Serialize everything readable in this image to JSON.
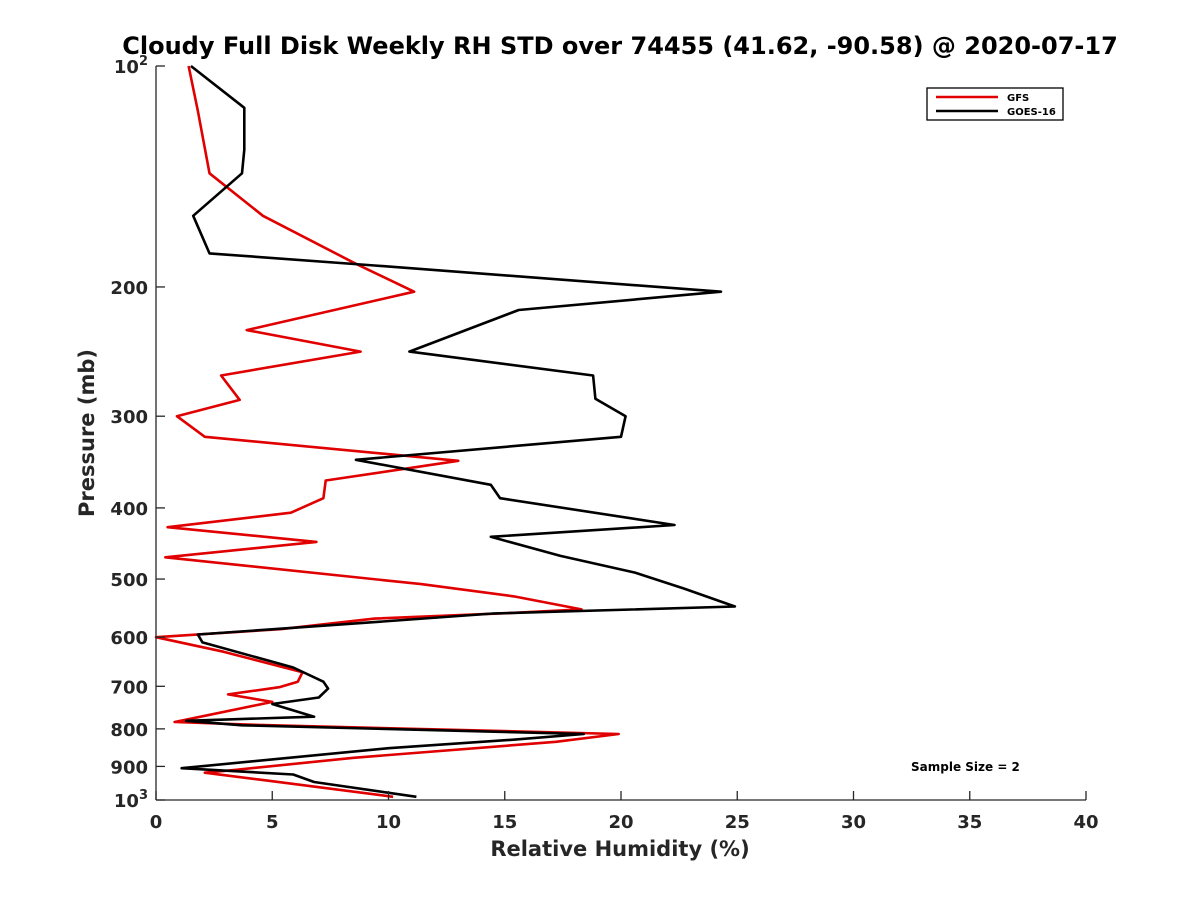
{
  "chart_data": {
    "type": "line",
    "title": "Cloudy Full Disk Weekly RH STD over 74455 (41.62, -90.58) @ 2020-07-17",
    "xlabel": "Relative Humidity (%)",
    "ylabel": "Pressure (mb)",
    "xlim": [
      0,
      40
    ],
    "ylim": [
      100,
      1000
    ],
    "yscale": "log",
    "y_reversed": true,
    "grid": false,
    "legend_position": "top-right",
    "annotation": "Sample Size = 2",
    "x_ticks": [
      "0",
      "5",
      "10",
      "15",
      "20",
      "25",
      "30",
      "35",
      "40"
    ],
    "y_ticks": [
      {
        "value": 100,
        "base": "10",
        "exp": "2"
      },
      {
        "value": 200,
        "label": "200"
      },
      {
        "value": 300,
        "label": "300"
      },
      {
        "value": 400,
        "label": "400"
      },
      {
        "value": 500,
        "label": "500"
      },
      {
        "value": 600,
        "label": "600"
      },
      {
        "value": 700,
        "label": "700"
      },
      {
        "value": 800,
        "label": "800"
      },
      {
        "value": 900,
        "label": "900"
      },
      {
        "value": 1000,
        "base": "10",
        "exp": "3"
      }
    ],
    "series": [
      {
        "name": "GFS",
        "color": "#e00000",
        "x": [
          1.4,
          1.8,
          2.3,
          4.6,
          8.6,
          11.1,
          3.9,
          8.8,
          2.8,
          3.6,
          0.9,
          2.1,
          13,
          7.3,
          7.2,
          5.8,
          0.5,
          6.9,
          0.4,
          11.4,
          15.4,
          18.3,
          15.3,
          9.4,
          5.4,
          0,
          2.9,
          6.3,
          6.1,
          5.3,
          3.1,
          5,
          1.5,
          0.8,
          4.4,
          19.9,
          17.2,
          8.5,
          3.4,
          2.1,
          4.7,
          10.2
        ],
        "y": [
          100,
          115,
          140,
          160,
          186,
          203,
          229,
          245,
          264,
          285,
          300,
          320,
          345,
          367,
          388,
          406,
          425,
          445,
          467,
          508,
          528,
          550,
          556,
          566,
          585,
          600,
          628,
          670,
          690,
          702,
          718,
          735,
          775,
          783,
          790,
          813,
          833,
          876,
          910,
          918,
          940,
          990
        ]
      },
      {
        "name": "GOES-16",
        "color": "#000000",
        "x": [
          1.5,
          3.8,
          3.8,
          3.7,
          1.6,
          2.3,
          9.4,
          24.3,
          15.6,
          10.9,
          18.8,
          18.9,
          20.2,
          20,
          8.6,
          14.4,
          14.8,
          22.3,
          14.4,
          17.4,
          20.6,
          22.7,
          24.9,
          14.5,
          8.5,
          1.8,
          2,
          5.9,
          7.2,
          7.4,
          7,
          5,
          6.8,
          1.3,
          3.7,
          18.4,
          15.3,
          10,
          1.1,
          5.9,
          6.8,
          11.2
        ],
        "y": [
          100,
          114,
          130,
          140,
          160,
          180,
          187,
          203,
          215,
          245,
          264,
          284,
          300,
          320,
          344,
          372,
          388,
          422,
          438,
          465,
          490,
          515,
          545,
          557,
          575,
          595,
          610,
          660,
          690,
          705,
          725,
          740,
          770,
          780,
          791,
          813,
          828,
          850,
          905,
          923,
          945,
          990
        ]
      }
    ]
  }
}
